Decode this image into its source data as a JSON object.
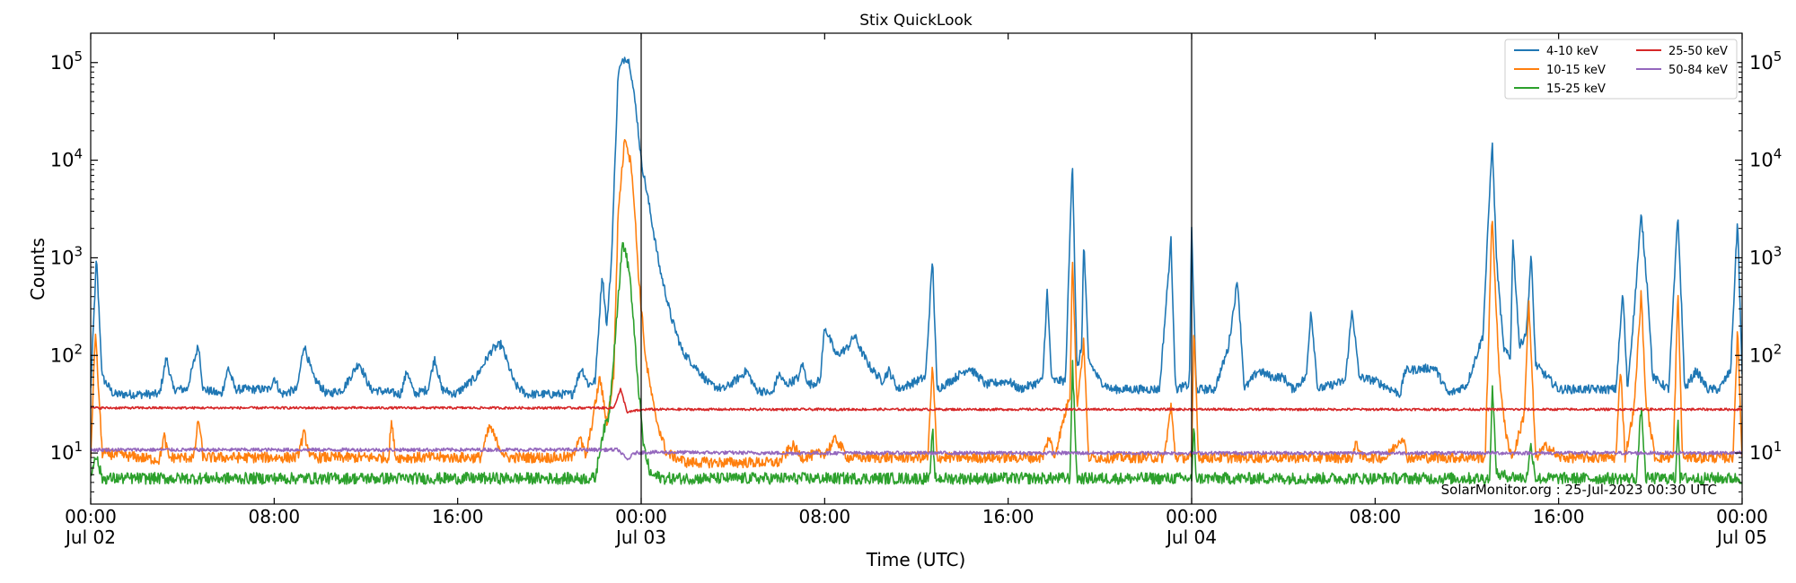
{
  "chart_data": {
    "type": "line",
    "title": "Stix QuickLook",
    "xlabel": "Time (UTC)",
    "ylabel": "Counts",
    "yscale": "log",
    "ylim": [
      3,
      200000
    ],
    "xlim_hours": [
      0,
      72
    ],
    "x_ticks": [
      {
        "hour": 0,
        "time": "00:00",
        "date": "Jul 02"
      },
      {
        "hour": 8,
        "time": "08:00",
        "date": ""
      },
      {
        "hour": 16,
        "time": "16:00",
        "date": ""
      },
      {
        "hour": 24,
        "time": "00:00",
        "date": "Jul 03"
      },
      {
        "hour": 32,
        "time": "08:00",
        "date": ""
      },
      {
        "hour": 40,
        "time": "16:00",
        "date": ""
      },
      {
        "hour": 48,
        "time": "00:00",
        "date": "Jul 04"
      },
      {
        "hour": 56,
        "time": "08:00",
        "date": ""
      },
      {
        "hour": 64,
        "time": "16:00",
        "date": ""
      },
      {
        "hour": 72,
        "time": "00:00",
        "date": "Jul 05"
      }
    ],
    "y_ticks": [
      {
        "value": 10,
        "exp": "1"
      },
      {
        "value": 100,
        "exp": "2"
      },
      {
        "value": 1000,
        "exp": "3"
      },
      {
        "value": 10000,
        "exp": "4"
      },
      {
        "value": 100000,
        "exp": "5"
      }
    ],
    "day_boundaries_hours": [
      24,
      48
    ],
    "legend_position": "top-right",
    "annotation": "SolarMonitor.org : 25-Jul-2023 00:30 UTC",
    "series": [
      {
        "name": "4-10 keV",
        "color": "#1f77b4",
        "baseline": 42,
        "points": [
          [
            0,
            45
          ],
          [
            0.25,
            1000
          ],
          [
            0.5,
            60
          ],
          [
            1,
            40
          ],
          [
            3,
            40
          ],
          [
            3.3,
            95
          ],
          [
            3.6,
            45
          ],
          [
            4.2,
            45
          ],
          [
            4.7,
            130
          ],
          [
            4.9,
            45
          ],
          [
            5.7,
            40
          ],
          [
            6,
            75
          ],
          [
            6.3,
            45
          ],
          [
            7.8,
            45
          ],
          [
            8,
            60
          ],
          [
            8.3,
            40
          ],
          [
            9,
            45
          ],
          [
            9.3,
            130
          ],
          [
            9.7,
            60
          ],
          [
            10.3,
            40
          ],
          [
            11,
            45
          ],
          [
            11.7,
            85
          ],
          [
            12.2,
            45
          ],
          [
            13.5,
            40
          ],
          [
            13.8,
            70
          ],
          [
            14.1,
            40
          ],
          [
            14.7,
            45
          ],
          [
            15,
            95
          ],
          [
            15.3,
            45
          ],
          [
            15.9,
            40
          ],
          [
            16.8,
            60
          ],
          [
            17.5,
            115
          ],
          [
            17.9,
            130
          ],
          [
            18.5,
            50
          ],
          [
            19,
            40
          ],
          [
            20,
            40
          ],
          [
            21,
            40
          ],
          [
            21.4,
            75
          ],
          [
            21.7,
            50
          ],
          [
            22,
            55
          ],
          [
            22.3,
            700
          ],
          [
            22.5,
            200
          ],
          [
            22.7,
            900
          ],
          [
            23,
            80000
          ],
          [
            23.3,
            115000
          ],
          [
            23.5,
            100000
          ],
          [
            23.8,
            30000
          ],
          [
            24,
            10000
          ],
          [
            24.3,
            4000
          ],
          [
            24.8,
            800
          ],
          [
            25.3,
            250
          ],
          [
            25.8,
            110
          ],
          [
            26.5,
            70
          ],
          [
            27,
            50
          ],
          [
            27.6,
            45
          ],
          [
            28.3,
            60
          ],
          [
            28.6,
            70
          ],
          [
            29,
            45
          ],
          [
            29.7,
            40
          ],
          [
            30,
            65
          ],
          [
            30.3,
            50
          ],
          [
            30.9,
            60
          ],
          [
            31,
            85
          ],
          [
            31.3,
            50
          ],
          [
            31.8,
            55
          ],
          [
            32,
            200
          ],
          [
            32.5,
            100
          ],
          [
            33,
            120
          ],
          [
            33.3,
            160
          ],
          [
            33.6,
            110
          ],
          [
            34,
            75
          ],
          [
            34.5,
            55
          ],
          [
            34.8,
            70
          ],
          [
            35.2,
            45
          ],
          [
            36.4,
            60
          ],
          [
            36.7,
            1000
          ],
          [
            36.9,
            45
          ],
          [
            37.5,
            55
          ],
          [
            38.3,
            75
          ],
          [
            38.9,
            55
          ],
          [
            39,
            50
          ],
          [
            40,
            55
          ],
          [
            40.5,
            45
          ],
          [
            41.5,
            55
          ],
          [
            41.7,
            450
          ],
          [
            41.9,
            55
          ],
          [
            42.5,
            55
          ],
          [
            42.8,
            11000
          ],
          [
            43,
            70
          ],
          [
            43.2,
            120
          ],
          [
            43.3,
            1500
          ],
          [
            43.5,
            90
          ],
          [
            44,
            55
          ],
          [
            44.5,
            45
          ],
          [
            45,
            45
          ],
          [
            46,
            45
          ],
          [
            46.6,
            45
          ],
          [
            47.1,
            1500
          ],
          [
            47.3,
            45
          ],
          [
            47.9,
            50
          ],
          [
            48,
            2000
          ],
          [
            48.2,
            45
          ],
          [
            49,
            45
          ],
          [
            49.6,
            120
          ],
          [
            50,
            600
          ],
          [
            50.3,
            45
          ],
          [
            50.9,
            70
          ],
          [
            51.5,
            60
          ],
          [
            52,
            60
          ],
          [
            52.4,
            45
          ],
          [
            53,
            60
          ],
          [
            53.2,
            300
          ],
          [
            53.5,
            45
          ],
          [
            54.7,
            55
          ],
          [
            55,
            300
          ],
          [
            55.3,
            60
          ],
          [
            56,
            55
          ],
          [
            57.1,
            40
          ],
          [
            57.3,
            70
          ],
          [
            58.6,
            75
          ],
          [
            59.2,
            40
          ],
          [
            60,
            50
          ],
          [
            60.7,
            160
          ],
          [
            61.1,
            16000
          ],
          [
            61.3,
            900
          ],
          [
            61.6,
            120
          ],
          [
            61.9,
            90
          ],
          [
            62,
            1600
          ],
          [
            62.3,
            120
          ],
          [
            62.6,
            180
          ],
          [
            62.8,
            1100
          ],
          [
            63,
            80
          ],
          [
            63.5,
            60
          ],
          [
            64,
            45
          ],
          [
            64.5,
            45
          ],
          [
            66,
            45
          ],
          [
            66.5,
            45
          ],
          [
            66.8,
            450
          ],
          [
            67,
            45
          ],
          [
            67.3,
            300
          ],
          [
            67.6,
            2800
          ],
          [
            67.9,
            400
          ],
          [
            68.1,
            60
          ],
          [
            68.8,
            45
          ],
          [
            69.2,
            2800
          ],
          [
            69.5,
            45
          ],
          [
            70,
            70
          ],
          [
            70.5,
            45
          ],
          [
            71,
            45
          ],
          [
            71.5,
            70
          ],
          [
            71.8,
            2500
          ],
          [
            72,
            60
          ]
        ]
      },
      {
        "name": "10-15 keV",
        "color": "#ff7f0e",
        "baseline": 8.5,
        "points": [
          [
            0,
            9
          ],
          [
            0.2,
            180
          ],
          [
            0.5,
            10
          ],
          [
            3,
            8.5
          ],
          [
            3.2,
            15
          ],
          [
            3.4,
            9
          ],
          [
            4.5,
            9
          ],
          [
            4.7,
            23
          ],
          [
            4.9,
            9
          ],
          [
            9,
            9
          ],
          [
            9.3,
            16
          ],
          [
            9.6,
            9
          ],
          [
            13,
            9
          ],
          [
            13.1,
            22
          ],
          [
            13.3,
            9
          ],
          [
            17,
            9
          ],
          [
            17.4,
            19
          ],
          [
            17.7,
            13
          ],
          [
            18.1,
            9
          ],
          [
            21,
            9
          ],
          [
            21.3,
            15
          ],
          [
            21.6,
            9
          ],
          [
            22.2,
            60
          ],
          [
            22.5,
            20
          ],
          [
            22.8,
            60
          ],
          [
            23,
            3000
          ],
          [
            23.3,
            18000
          ],
          [
            23.6,
            8000
          ],
          [
            23.9,
            600
          ],
          [
            24.2,
            90
          ],
          [
            24.6,
            25
          ],
          [
            25.1,
            10
          ],
          [
            26,
            8
          ],
          [
            30,
            8
          ],
          [
            30.6,
            12
          ],
          [
            31,
            9
          ],
          [
            32,
            10
          ],
          [
            32.5,
            14
          ],
          [
            33,
            9
          ],
          [
            34,
            9
          ],
          [
            36.5,
            9
          ],
          [
            36.7,
            80
          ],
          [
            36.9,
            9
          ],
          [
            41.5,
            9
          ],
          [
            41.8,
            15
          ],
          [
            42,
            9
          ],
          [
            42.7,
            40
          ],
          [
            42.8,
            1200
          ],
          [
            43,
            30
          ],
          [
            43.3,
            140
          ],
          [
            43.5,
            9
          ],
          [
            46.8,
            9
          ],
          [
            47.1,
            30
          ],
          [
            47.3,
            9
          ],
          [
            48,
            9
          ],
          [
            48.1,
            200
          ],
          [
            48.3,
            9
          ],
          [
            55,
            9
          ],
          [
            55.2,
            13
          ],
          [
            55.4,
            9
          ],
          [
            56.5,
            9
          ],
          [
            57.2,
            15
          ],
          [
            57.4,
            9
          ],
          [
            60.8,
            9
          ],
          [
            61.1,
            2800
          ],
          [
            61.4,
            70
          ],
          [
            61.7,
            15
          ],
          [
            62,
            9
          ],
          [
            62.5,
            25
          ],
          [
            62.7,
            350
          ],
          [
            63,
            9
          ],
          [
            63.5,
            12
          ],
          [
            64,
            9
          ],
          [
            66.5,
            9
          ],
          [
            66.7,
            80
          ],
          [
            66.9,
            9
          ],
          [
            67.3,
            30
          ],
          [
            67.6,
            450
          ],
          [
            67.8,
            35
          ],
          [
            68.2,
            9
          ],
          [
            69,
            9
          ],
          [
            69.2,
            450
          ],
          [
            69.4,
            9
          ],
          [
            71.6,
            9
          ],
          [
            71.8,
            180
          ],
          [
            72,
            9
          ]
        ]
      },
      {
        "name": "15-25 keV",
        "color": "#2ca02c",
        "baseline": 5.5,
        "points": [
          [
            0,
            5.5
          ],
          [
            0.2,
            10
          ],
          [
            0.5,
            5.5
          ],
          [
            22,
            5.5
          ],
          [
            22.3,
            15
          ],
          [
            22.6,
            25
          ],
          [
            22.9,
            200
          ],
          [
            23.2,
            1500
          ],
          [
            23.5,
            700
          ],
          [
            23.8,
            80
          ],
          [
            24.1,
            12
          ],
          [
            24.4,
            6
          ],
          [
            25,
            5.5
          ],
          [
            36.6,
            5.5
          ],
          [
            36.7,
            20
          ],
          [
            36.8,
            5.5
          ],
          [
            42.7,
            5.5
          ],
          [
            42.8,
            90
          ],
          [
            43,
            5.5
          ],
          [
            48,
            5.5
          ],
          [
            48.1,
            18
          ],
          [
            48.2,
            5.5
          ],
          [
            61,
            5.5
          ],
          [
            61.1,
            50
          ],
          [
            61.3,
            6
          ],
          [
            62.6,
            5.5
          ],
          [
            62.8,
            12
          ],
          [
            63,
            5.5
          ],
          [
            67.4,
            5.5
          ],
          [
            67.6,
            30
          ],
          [
            67.8,
            5.5
          ],
          [
            69.1,
            5.5
          ],
          [
            69.2,
            25
          ],
          [
            69.3,
            5.5
          ],
          [
            72,
            5.5
          ]
        ]
      },
      {
        "name": "25-50 keV",
        "color": "#d62728",
        "baseline": 28,
        "points": [
          [
            0,
            29
          ],
          [
            22,
            29
          ],
          [
            22.8,
            29
          ],
          [
            23.1,
            45
          ],
          [
            23.4,
            26
          ],
          [
            23.7,
            27
          ],
          [
            24.2,
            28
          ],
          [
            30,
            28
          ],
          [
            48,
            28
          ],
          [
            60,
            28
          ],
          [
            72,
            28
          ]
        ]
      },
      {
        "name": "50-84 keV",
        "color": "#9467bd",
        "baseline": 10.5,
        "points": [
          [
            0,
            10.8
          ],
          [
            22.5,
            10.8
          ],
          [
            23,
            10.8
          ],
          [
            23.4,
            8.5
          ],
          [
            23.7,
            10
          ],
          [
            24.2,
            10.2
          ],
          [
            30,
            10
          ],
          [
            48,
            10
          ],
          [
            60,
            10
          ],
          [
            72,
            10
          ]
        ]
      }
    ]
  }
}
